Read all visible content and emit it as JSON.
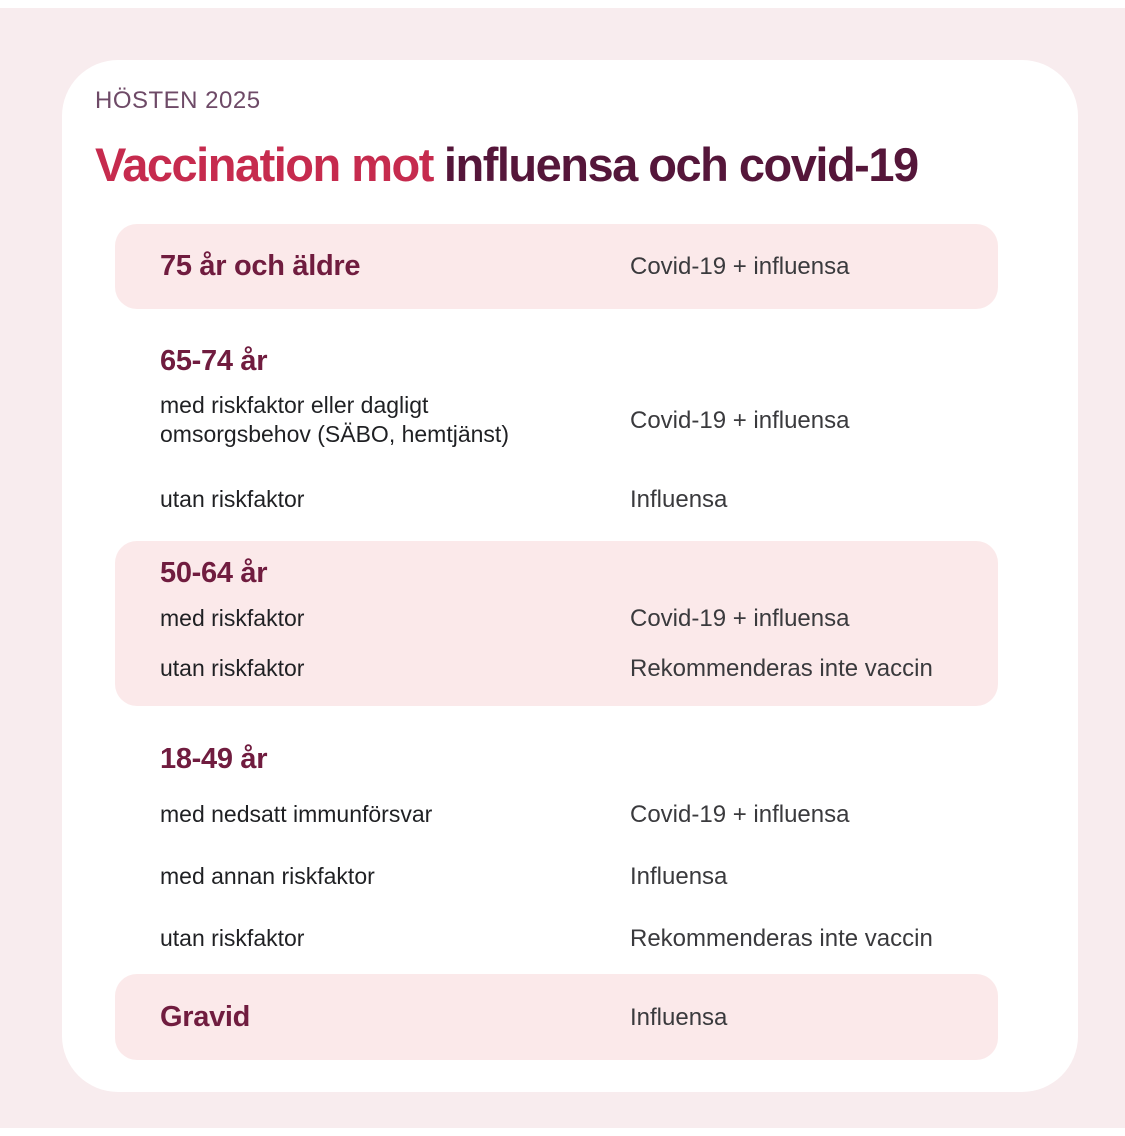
{
  "colors": {
    "bg": "#f8ecee",
    "card": "#ffffff",
    "row": "#fbe9ea",
    "kicker": "#6e4a67",
    "crimson": "#c62b4e",
    "maroon-title": "#55163a",
    "maroon-heading": "#701c3f",
    "label": "#1f2023",
    "value": "#3a3a3d"
  },
  "kicker": "HÖSTEN 2025",
  "title": {
    "part1": "Vaccination mot",
    "part2": "influensa och covid-19"
  },
  "sections": [
    {
      "heading": "75 år och äldre",
      "value": "Covid-19 + influensa",
      "highlight": true
    },
    {
      "heading": "65-74 år",
      "highlight": false,
      "rows": [
        {
          "label": "med riskfaktor eller dagligt omsorgsbehov (SÄBO, hemtjänst)",
          "value": "Covid-19 + influensa"
        },
        {
          "label": "utan riskfaktor",
          "value": "Influensa"
        }
      ]
    },
    {
      "heading": "50-64 år",
      "highlight": true,
      "rows": [
        {
          "label": "med riskfaktor",
          "value": "Covid-19 + influensa"
        },
        {
          "label": "utan riskfaktor",
          "value": "Rekommenderas inte vaccin"
        }
      ]
    },
    {
      "heading": "18-49 år",
      "highlight": false,
      "rows": [
        {
          "label": "med nedsatt immunförsvar",
          "value": "Covid-19 + influensa"
        },
        {
          "label": "med annan riskfaktor",
          "value": "Influensa"
        },
        {
          "label": "utan riskfaktor",
          "value": "Rekommenderas inte vaccin"
        }
      ]
    },
    {
      "heading": "Gravid",
      "value": "Influensa",
      "highlight": true
    }
  ]
}
